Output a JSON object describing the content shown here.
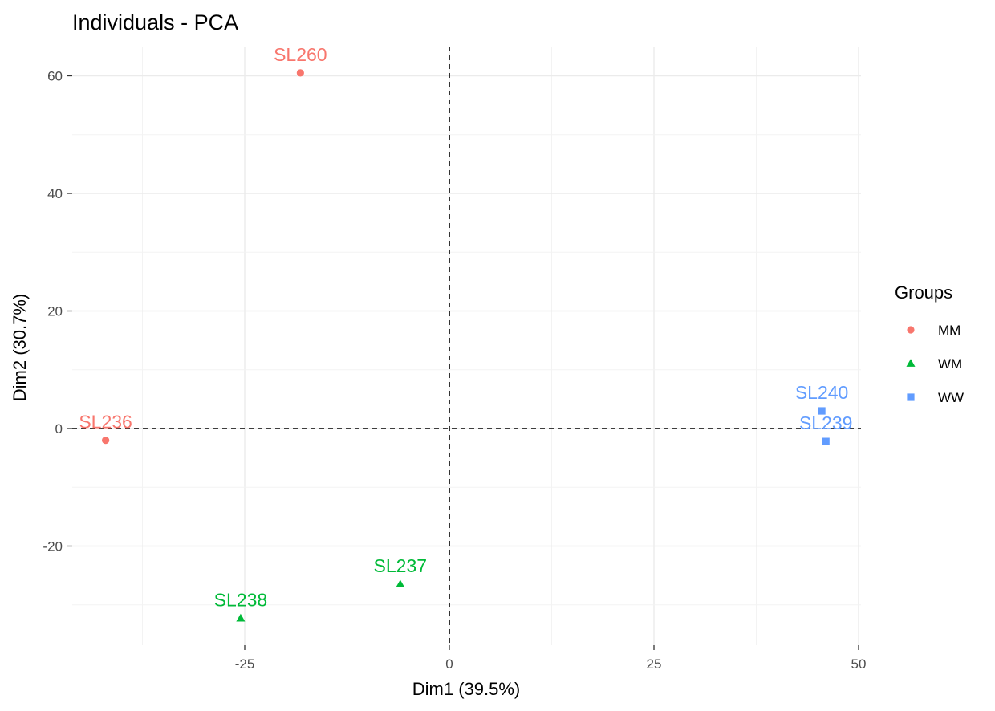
{
  "chart_data": {
    "type": "scatter",
    "title": "Individuals - PCA",
    "xlabel": "Dim1 (39.5%)",
    "ylabel": "Dim2 (30.7%)",
    "xlim": [
      -46,
      50
    ],
    "ylim": [
      -37,
      65
    ],
    "x_ticks": [
      -25,
      0,
      25,
      50
    ],
    "y_ticks": [
      -20,
      0,
      20,
      40,
      60
    ],
    "grid": true,
    "zero_lines": true,
    "legend": {
      "title": "Groups",
      "position": "right",
      "entries": [
        {
          "name": "MM",
          "color": "#F8766D",
          "shape": "circle"
        },
        {
          "name": "WM",
          "color": "#00BA38",
          "shape": "triangle"
        },
        {
          "name": "WW",
          "color": "#619CFF",
          "shape": "square"
        }
      ]
    },
    "points": [
      {
        "label": "SL260",
        "group": "MM",
        "x": -18.2,
        "y": 60.5
      },
      {
        "label": "SL236",
        "group": "MM",
        "x": -42.0,
        "y": -2.0
      },
      {
        "label": "SL237",
        "group": "WM",
        "x": -6.0,
        "y": -26.5
      },
      {
        "label": "SL238",
        "group": "WM",
        "x": -25.5,
        "y": -32.3
      },
      {
        "label": "SL240",
        "group": "WW",
        "x": 45.5,
        "y": 3.0
      },
      {
        "label": "SL239",
        "group": "WW",
        "x": 46.0,
        "y": -2.2
      }
    ]
  }
}
